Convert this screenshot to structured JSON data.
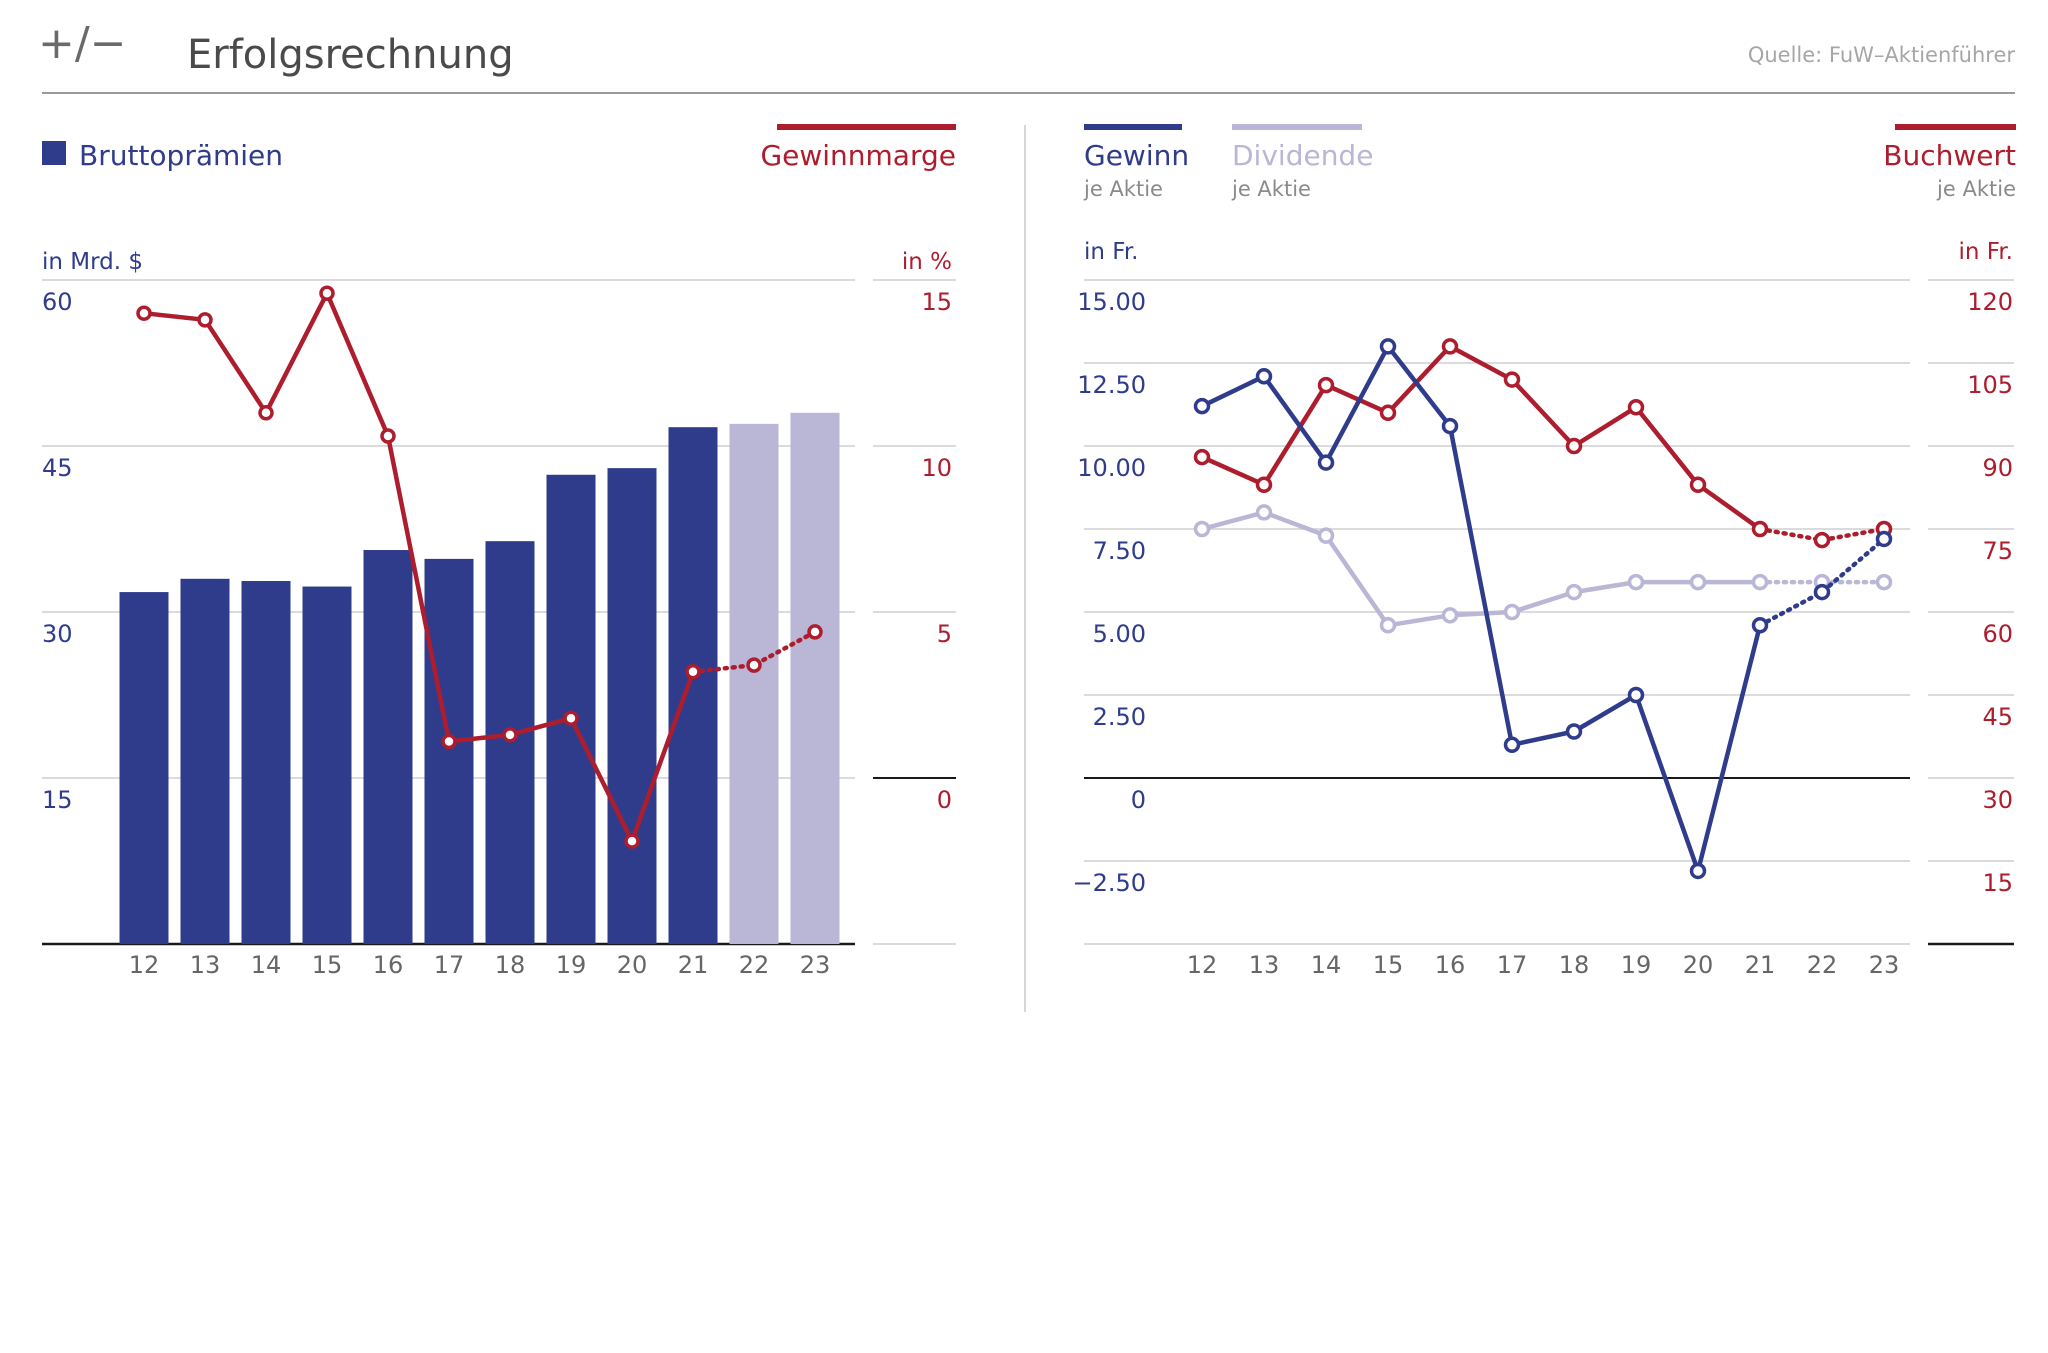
{
  "header": {
    "logo": "+/−",
    "title": "Erfolgsrechnung",
    "source": "Quelle: FuW–Aktienführer"
  },
  "colors": {
    "blue": "#2f3c8c",
    "lavender": "#b9b6d6",
    "red": "#ad1d2d",
    "grid": "#cfcfcf",
    "axis": "#1a1a1a",
    "text": "#4a4a4a"
  },
  "chart_data": [
    {
      "type": "bar",
      "categories": [
        "12",
        "13",
        "14",
        "15",
        "16",
        "17",
        "18",
        "19",
        "20",
        "21",
        "22",
        "23"
      ],
      "title": "",
      "legend": {
        "bars": "Bruttoprämien",
        "line": "Gewinnmarge"
      },
      "y_left": {
        "label": "in Mrd. $",
        "ticks": [
          60,
          45,
          30,
          15
        ],
        "range": [
          0,
          60
        ]
      },
      "y_right": {
        "label": "in %",
        "ticks": [
          15,
          10,
          5,
          0
        ],
        "range": [
          -5,
          15
        ]
      },
      "series": [
        {
          "name": "Bruttoprämien",
          "axis": "left",
          "type": "bar",
          "values": [
            31.8,
            33.0,
            32.8,
            32.3,
            35.6,
            34.8,
            36.4,
            42.4,
            43.0,
            46.7,
            47.0,
            48.0
          ],
          "estimated_from_index": 10
        },
        {
          "name": "Gewinnmarge",
          "axis": "right",
          "type": "line",
          "values": [
            14.0,
            13.8,
            11.0,
            14.6,
            10.3,
            1.1,
            1.3,
            1.8,
            -1.9,
            3.2,
            3.4,
            4.4
          ],
          "estimated_from_index": 9
        }
      ],
      "grid": true
    },
    {
      "type": "line",
      "categories": [
        "12",
        "13",
        "14",
        "15",
        "16",
        "17",
        "18",
        "19",
        "20",
        "21",
        "22",
        "23"
      ],
      "title": "",
      "legend": [
        {
          "name": "Gewinn",
          "sub": "je Aktie"
        },
        {
          "name": "Dividende",
          "sub": "je Aktie"
        },
        {
          "name": "Buchwert",
          "sub": "je Aktie"
        }
      ],
      "y_left": {
        "label": "in Fr.",
        "ticks": [
          "15.00",
          "12.50",
          "10.00",
          "7.50",
          "5.00",
          "2.50",
          "0",
          "−2.50"
        ],
        "range": [
          -5,
          15
        ]
      },
      "y_right": {
        "label": "in Fr.",
        "ticks": [
          "120",
          "105",
          "90",
          "75",
          "60",
          "45",
          "30",
          "15"
        ],
        "range": [
          0,
          120
        ]
      },
      "series": [
        {
          "name": "Gewinn",
          "axis": "left",
          "values": [
            11.2,
            12.1,
            9.5,
            13.0,
            10.6,
            1.0,
            1.4,
            2.5,
            -2.8,
            4.6,
            5.6,
            7.2
          ],
          "estimated_from_index": 9
        },
        {
          "name": "Dividende",
          "axis": "left",
          "values": [
            7.5,
            8.0,
            7.3,
            4.6,
            4.9,
            5.0,
            5.6,
            5.9,
            5.9,
            5.9,
            5.9,
            5.9
          ],
          "estimated_from_index": 9
        },
        {
          "name": "Buchwert",
          "axis": "right",
          "values": [
            88,
            83,
            101,
            96,
            108,
            102,
            90,
            97,
            83,
            75,
            73,
            75
          ],
          "estimated_from_index": 9
        }
      ],
      "grid": true
    }
  ]
}
